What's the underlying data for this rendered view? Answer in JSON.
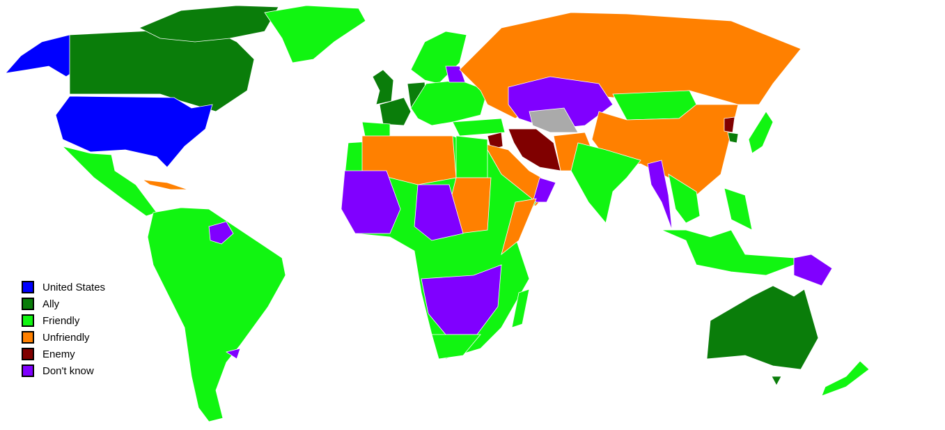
{
  "colors": {
    "united_states": "#0000ff",
    "ally": "#0a7d0a",
    "friendly": "#11f511",
    "unfriendly": "#ff8000",
    "enemy": "#800000",
    "dont_know": "#8000ff",
    "no_data": "#aaaaaa"
  },
  "legend": {
    "items": [
      {
        "label": "United States",
        "color": "#0000ff"
      },
      {
        "label": "Ally",
        "color": "#0a7d0a"
      },
      {
        "label": "Friendly",
        "color": "#11f511"
      },
      {
        "label": "Unfriendly",
        "color": "#ff8000"
      },
      {
        "label": "Enemy",
        "color": "#800000"
      },
      {
        "label": "Don't know",
        "color": "#8000ff"
      }
    ]
  }
}
